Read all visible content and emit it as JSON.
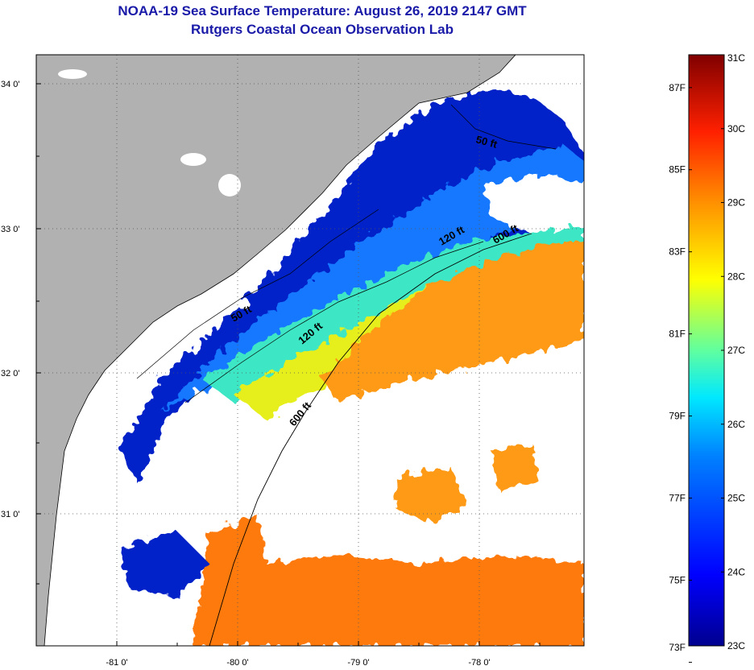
{
  "title": {
    "line1": "NOAA-19 Sea Surface Temperature:  August 26, 2019 2147 GMT",
    "line2": "Rutgers Coastal Ocean Observation Lab"
  },
  "colors": {
    "land": "#b1b1b1",
    "cloud": "#ffffff",
    "coast": "#000000"
  },
  "axes": {
    "lat_labels": [
      "34 0'",
      "33 0'",
      "32 0'",
      "31 0'"
    ],
    "lon_labels": [
      "-81 0'",
      "-80 0'",
      "-79 0'",
      "-78 0'"
    ]
  },
  "contours": [
    {
      "label": "50 ft"
    },
    {
      "label": "50 ft"
    },
    {
      "label": "120 ft"
    },
    {
      "label": "120 ft"
    },
    {
      "label": "600 ft"
    },
    {
      "label": "600 ft"
    }
  ],
  "colorbar": {
    "fahrenheit": [
      "87F",
      "85F",
      "83F",
      "81F",
      "79F",
      "77F",
      "75F",
      "73F"
    ],
    "celsius": [
      "31C",
      "30C",
      "29C",
      "28C",
      "27C",
      "26C",
      "25C",
      "24C",
      "23C"
    ],
    "min_c": 23,
    "max_c": 31
  }
}
